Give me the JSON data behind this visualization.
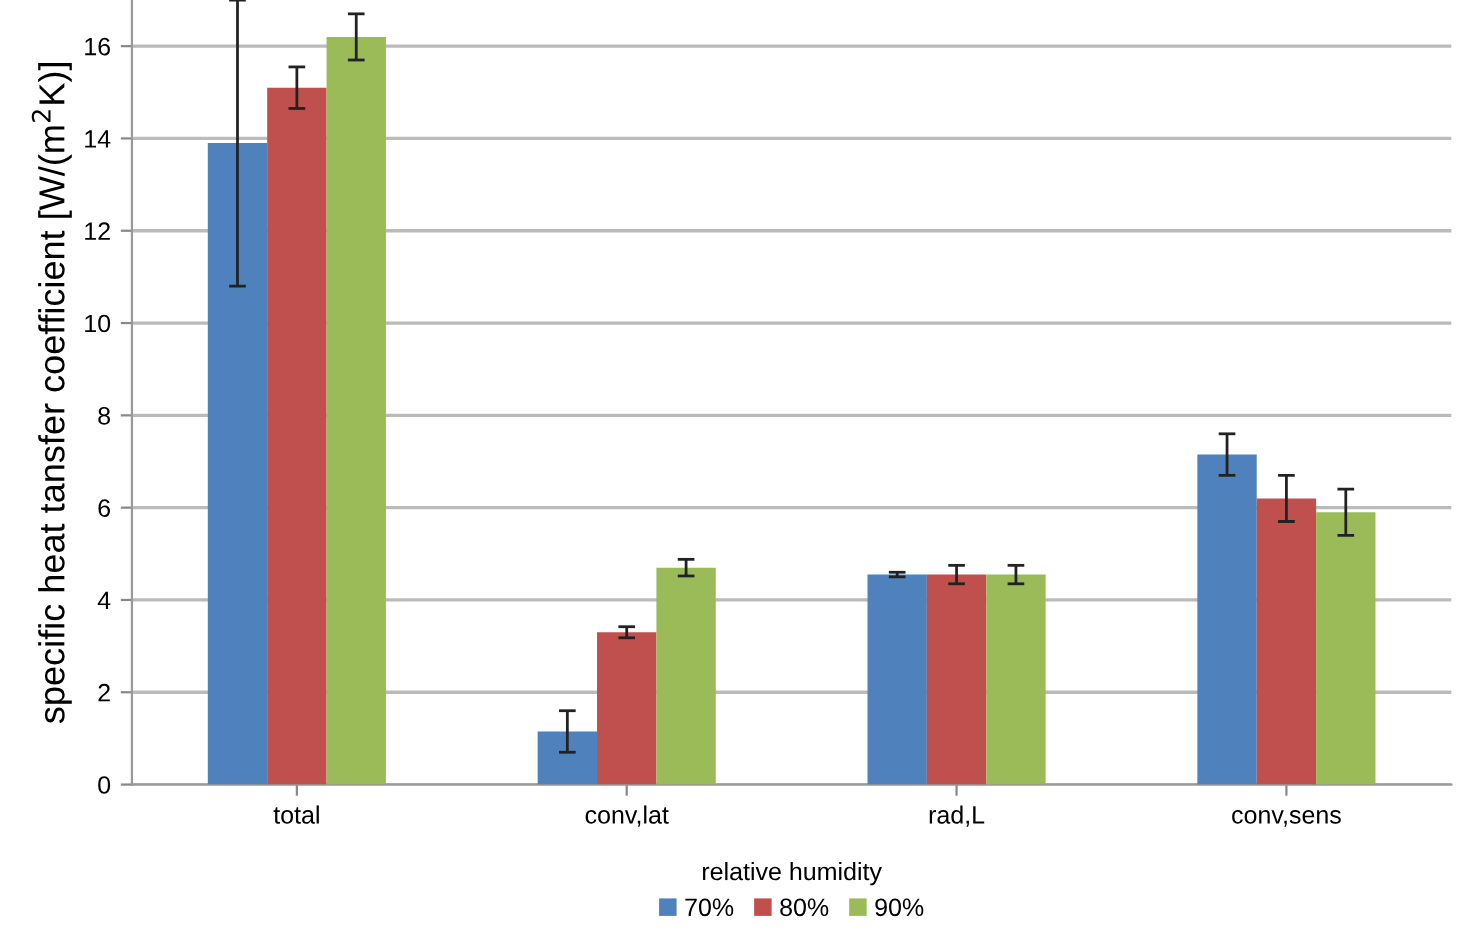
{
  "chart_data": {
    "type": "bar",
    "ylabel": "specific heat tansfer coefficient [W/(m$^{2}$K)]",
    "legend_title": "relative humidity",
    "categories": [
      "total",
      "conv,lat",
      "rad,L",
      "conv,sens"
    ],
    "series": [
      {
        "name": "70%",
        "color": "#4f81bd",
        "values": [
          13.9,
          1.15,
          4.55,
          7.15
        ],
        "errors": [
          3.1,
          0.45,
          0.05,
          0.45
        ]
      },
      {
        "name": "80%",
        "color": "#c0504d",
        "values": [
          15.1,
          3.3,
          4.55,
          6.2
        ],
        "errors": [
          0.45,
          0.12,
          0.2,
          0.5
        ]
      },
      {
        "name": "90%",
        "color": "#9bbb59",
        "values": [
          16.2,
          4.7,
          4.55,
          5.9
        ],
        "errors": [
          0.5,
          0.18,
          0.2,
          0.5
        ]
      }
    ],
    "ylim": [
      0,
      17
    ],
    "yticks": [
      0,
      2,
      4,
      6,
      8,
      10,
      12,
      14,
      16
    ],
    "grid": "y",
    "legend": "bottom"
  }
}
